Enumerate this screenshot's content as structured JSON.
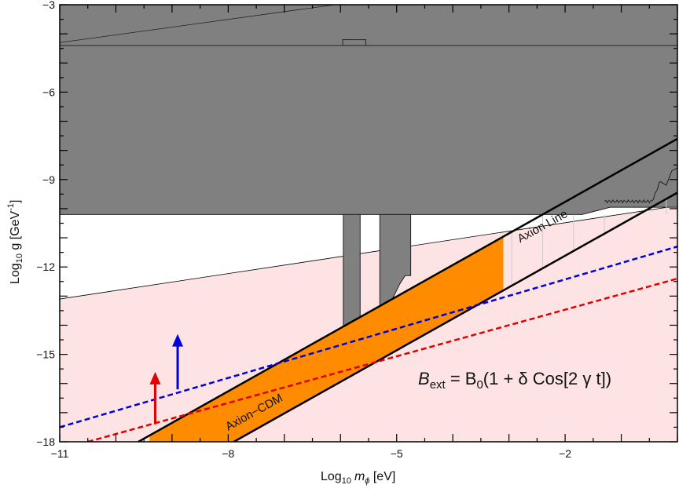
{
  "chart_data": {
    "type": "area",
    "xlabel": {
      "prefix": "Log",
      "sub": "10",
      "var": "m",
      "varsub": "ϕ",
      "unit": " [eV]"
    },
    "ylabel": {
      "prefix": "Log",
      "sub": "10",
      "rest": " g [GeV",
      "sup": "-1",
      "close": "]"
    },
    "xlim": [
      -11,
      0
    ],
    "ylim": [
      -18,
      -3
    ],
    "xticks": [
      {
        "value": -11,
        "label": "−11"
      },
      {
        "value": -8,
        "label": "−8"
      },
      {
        "value": -5,
        "label": "−5"
      },
      {
        "value": -2,
        "label": "−2"
      }
    ],
    "yticks": [
      {
        "value": -3,
        "label": "−3"
      },
      {
        "value": -6,
        "label": "−6"
      },
      {
        "value": -9,
        "label": "−9"
      },
      {
        "value": -12,
        "label": "−12"
      },
      {
        "value": -15,
        "label": "−15"
      },
      {
        "value": -18,
        "label": "−18"
      }
    ],
    "excluded_region_top": {
      "color": "#808080",
      "upper_boundary": [
        [
          -11,
          -3
        ],
        [
          0,
          -3
        ]
      ],
      "lower_boundary": [
        [
          -11,
          -10.2
        ],
        [
          -1.7,
          -10.2
        ],
        [
          -1.2,
          -9.95
        ],
        [
          0,
          -9.95
        ]
      ],
      "inner_line_y": -4.4
    },
    "excluded_region_top_notches": [
      {
        "x": [
          -5.96,
          -5.55
        ],
        "y_top": -4.2,
        "y_bottom": -4.4
      }
    ],
    "excluded_spikes": [
      {
        "x_left": -5.95,
        "x_right": -5.65,
        "y_bottom": -15.2
      },
      {
        "x_left": -5.3,
        "x_right": -4.75,
        "steps": [
          [
            -5.3,
            -13.6
          ],
          [
            -5.15,
            -13.35
          ],
          [
            -5.05,
            -13.0
          ],
          [
            -4.95,
            -12.6
          ],
          [
            -4.85,
            -12.3
          ],
          [
            -4.75,
            -12.3
          ]
        ]
      }
    ],
    "pink_region": {
      "color": "#fde3e4",
      "boundary": [
        [
          -11,
          -13.1
        ],
        [
          0,
          -9.9
        ]
      ]
    },
    "axion_band": {
      "label": "Axion Line",
      "upper": [
        [
          -9.6,
          -18
        ],
        [
          0,
          -7.6
        ]
      ],
      "lower": [
        [
          -7.9,
          -18
        ],
        [
          0,
          -9.45
        ]
      ]
    },
    "axion_cdm": {
      "label": "Axion−CDM",
      "color": "#ff8c00",
      "x_range": [
        -9.4,
        -3.1
      ]
    },
    "dashed_lines": [
      {
        "name": "blue",
        "color": "#0000dd",
        "points": [
          [
            -11,
            -17.5
          ],
          [
            0,
            -11.3
          ]
        ]
      },
      {
        "name": "red",
        "color": "#e00000",
        "points": [
          [
            -10.5,
            -18
          ],
          [
            0,
            -12.4
          ]
        ]
      }
    ],
    "arrows": [
      {
        "color": "#e00000",
        "x": -9.3,
        "y_from": -17.4,
        "y_to": -15.6
      },
      {
        "color": "#0000dd",
        "x": -8.9,
        "y_from": -16.2,
        "y_to": -14.3
      }
    ],
    "formula": {
      "B": "B",
      "ext": "ext",
      "eq": " = B",
      "zero": "0",
      "rest": "(1 + δ Cos[2 γ t])"
    }
  }
}
